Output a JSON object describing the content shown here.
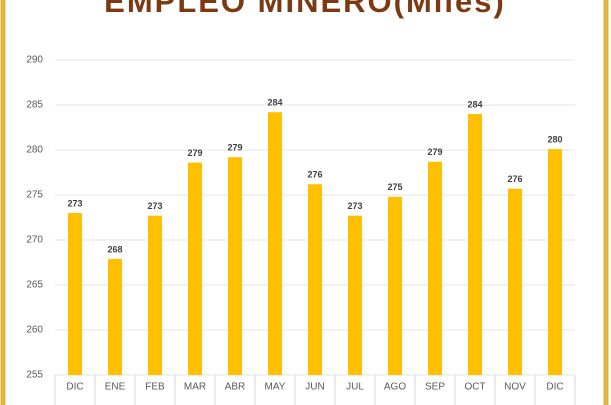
{
  "chart_data": {
    "type": "bar",
    "title": "EMPLEO MINERO(Miles)",
    "categories": [
      "DIC",
      "ENE",
      "FEB",
      "MAR",
      "ABR",
      "MAY",
      "JUN",
      "JUL",
      "AGO",
      "SEP",
      "OCT",
      "NOV",
      "DIC"
    ],
    "values": [
      273.0,
      267.9,
      272.7,
      278.6,
      279.2,
      284.2,
      276.2,
      272.7,
      274.8,
      278.7,
      284.0,
      275.7,
      280.1
    ],
    "value_labels": [
      "273",
      "268",
      "273",
      "279",
      "279",
      "284",
      "276",
      "273",
      "275",
      "279",
      "284",
      "276",
      "280"
    ],
    "color": "#ffc000",
    "ylim": [
      255,
      290
    ],
    "yticks": [
      255,
      260,
      265,
      270,
      275,
      280,
      285,
      290
    ],
    "grid": true
  }
}
